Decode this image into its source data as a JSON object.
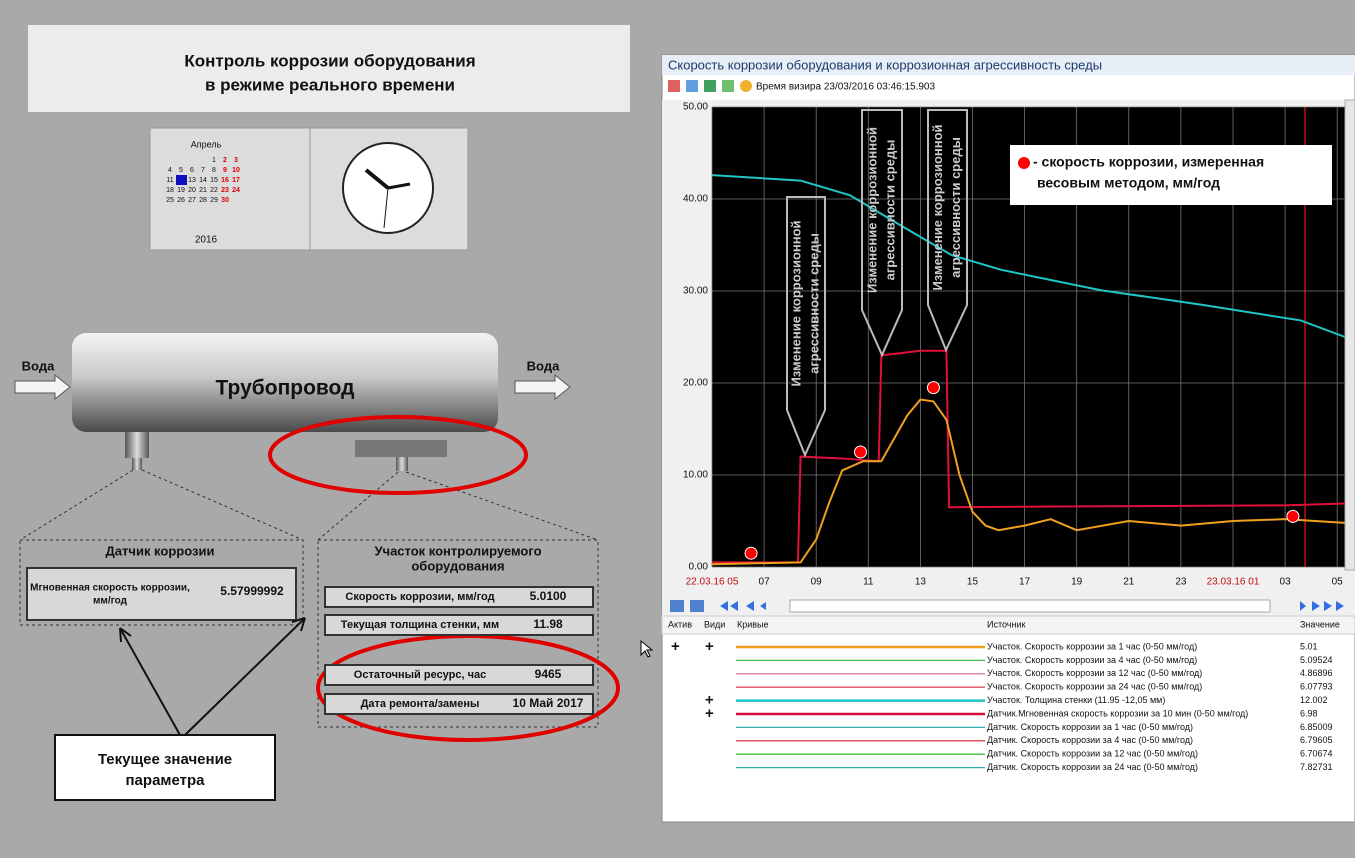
{
  "title": [
    "Контроль коррозии оборудования",
    "в режиме реального времени"
  ],
  "calendar": {
    "month": "Апрель",
    "year": "2016",
    "days": [
      "1",
      "2",
      "3",
      "4",
      "5",
      "6",
      "7",
      "8",
      "9",
      "10",
      "11",
      "12",
      "13",
      "14",
      "15",
      "16",
      "17",
      "18",
      "19",
      "20",
      "21",
      "22",
      "23",
      "24",
      "25",
      "26",
      "27",
      "28",
      "29",
      "30"
    ]
  },
  "pipe": {
    "inlet": "Вода",
    "label": "Трубопровод",
    "outlet": "Вода"
  },
  "sensor": {
    "title": "Датчик коррозии",
    "param": [
      "Мгновенная скорость коррозии,",
      "мм/год"
    ],
    "value": "5.57999992"
  },
  "section": {
    "title": [
      "Участок контролируемого",
      "оборудования"
    ],
    "rows": [
      [
        "Скорость коррозии, мм/год",
        "5.0100"
      ],
      [
        "Текущая толщина стенки, мм",
        "11.98"
      ],
      [
        "Остаточный ресурс, час",
        "9465"
      ],
      [
        "Дата  ремонта/замены",
        "10 Май 2017"
      ]
    ]
  },
  "callout": [
    "Текущее значение",
    "параметра"
  ],
  "window": {
    "title": "Скорость коррозии оборудования и коррозионная агрессивность среды",
    "cursor_time": "Время визира 23/03/2016 03:46:15.903"
  },
  "chart_data": {
    "type": "line",
    "xlim": [
      0,
      24.3
    ],
    "ylim": [
      0,
      50
    ],
    "xticks": [
      {
        "value": 0,
        "label": "22.03.16 05"
      },
      {
        "value": 2,
        "label": "07"
      },
      {
        "value": 4,
        "label": "09"
      },
      {
        "value": 6,
        "label": "11"
      },
      {
        "value": 8,
        "label": "13"
      },
      {
        "value": 10,
        "label": "15"
      },
      {
        "value": 12,
        "label": "17"
      },
      {
        "value": 14,
        "label": "19"
      },
      {
        "value": 16,
        "label": "21"
      },
      {
        "value": 18,
        "label": "23"
      },
      {
        "value": 20,
        "label": "23.03.16 01"
      },
      {
        "value": 22,
        "label": "03"
      },
      {
        "value": 24,
        "label": "05"
      }
    ],
    "yticks": [
      {
        "value": 0,
        "label": "0.00"
      },
      {
        "value": 10,
        "label": "10.00"
      },
      {
        "value": 20,
        "label": "20.00"
      },
      {
        "value": 30,
        "label": "30.00"
      },
      {
        "value": 40,
        "label": "40.00"
      },
      {
        "value": 50,
        "label": "50.00"
      }
    ],
    "grid": true,
    "series": [
      {
        "color": "#1fc6c6",
        "x": [
          0,
          3.4,
          5.3,
          7.2,
          9.2,
          11.1,
          14.9,
          18.8,
          22.6,
          24.3
        ],
        "values": [
          42.6,
          42,
          40.4,
          37.2,
          33.9,
          32.3,
          30.1,
          28.5,
          26.8,
          25
        ]
      },
      {
        "color": "#e0103a",
        "x": [
          0,
          3.3,
          3.4,
          5,
          6.4,
          6.5,
          8,
          9,
          9.1,
          15,
          22,
          24.3
        ],
        "values": [
          0.5,
          0.5,
          12,
          11.8,
          11.5,
          23,
          23.5,
          23.5,
          6.5,
          6.6,
          6.7,
          6.9
        ]
      },
      {
        "color": "#f0a020",
        "x": [
          0,
          3.4,
          4,
          4.5,
          5,
          5.8,
          6.5,
          7,
          7.5,
          8,
          8.5,
          9,
          9.5,
          10,
          10.5,
          11,
          12,
          13,
          14,
          16,
          18,
          20,
          22,
          24.3
        ],
        "values": [
          0.3,
          0.5,
          3,
          7,
          10.5,
          11.5,
          11.5,
          14,
          16.5,
          18.2,
          18,
          16,
          10,
          6,
          4.5,
          4,
          4.5,
          5.2,
          4,
          5,
          4.5,
          5,
          5.2,
          4.8
        ]
      }
    ],
    "points": {
      "color": "#ff0000",
      "x": [
        1.5,
        5.7,
        8.5,
        22.3
      ],
      "values": [
        1.5,
        12.5,
        19.5,
        5.5
      ]
    },
    "legend_text": [
      "- скорость коррозии, измеренная",
      "весовым методом, мм/год"
    ],
    "annotations": [
      [
        "Изменение коррозионной",
        "агрессивности среды"
      ],
      [
        "Изменение коррозионной",
        "агрессивности среды"
      ],
      [
        "Изменение коррозионной",
        "агрессивности среды"
      ]
    ]
  },
  "table": {
    "headers": [
      "Актив",
      "Види",
      "Кривые",
      "Источник",
      "Значение"
    ],
    "rows": [
      {
        "active": "+",
        "visible": "+",
        "color": "#f0a020",
        "source": "Участок. Скорость коррозии за 1 час (0-50 мм/год)",
        "value": "5.01"
      },
      {
        "color": "#40c040",
        "source": "Участок. Скорость коррозии за 4 час (0-50 мм/год)",
        "value": "5.09524"
      },
      {
        "color": "#e080a0",
        "source": "Участок. Скорость коррозии за 12 час (0-50 мм/год)",
        "value": "4.86896"
      },
      {
        "color": "#e05060",
        "source": "Участок. Скорость коррозии за 24 час (0-50 мм/год)",
        "value": "6.07793"
      },
      {
        "visible": "+",
        "color": "#1fc6c6",
        "source": "Участок. Толщина стенки (11.95 -12,05 мм)",
        "value": "12.002"
      },
      {
        "visible": "+",
        "color": "#d0103a",
        "source": "Датчик.Мгновенная скорость коррозии за 10 мин (0-50 мм/год)",
        "value": "6.98"
      },
      {
        "color": "#30b0b0",
        "source": "Датчик. Скорость коррозии за 1 час (0-50 мм/год)",
        "value": "6.85009"
      },
      {
        "color": "#e04050",
        "source": "Датчик. Скорость коррозии за 4 час (0-50 мм/год)",
        "value": "6.79605"
      },
      {
        "color": "#40c040",
        "source": "Датчик. Скорость коррозии за 12 час (0-50 мм/год)",
        "value": "6.70674"
      },
      {
        "color": "#30b0b0",
        "source": "Датчик. Скорость коррозии за 24 час (0-50 мм/год)",
        "value": "7.82731"
      }
    ]
  }
}
